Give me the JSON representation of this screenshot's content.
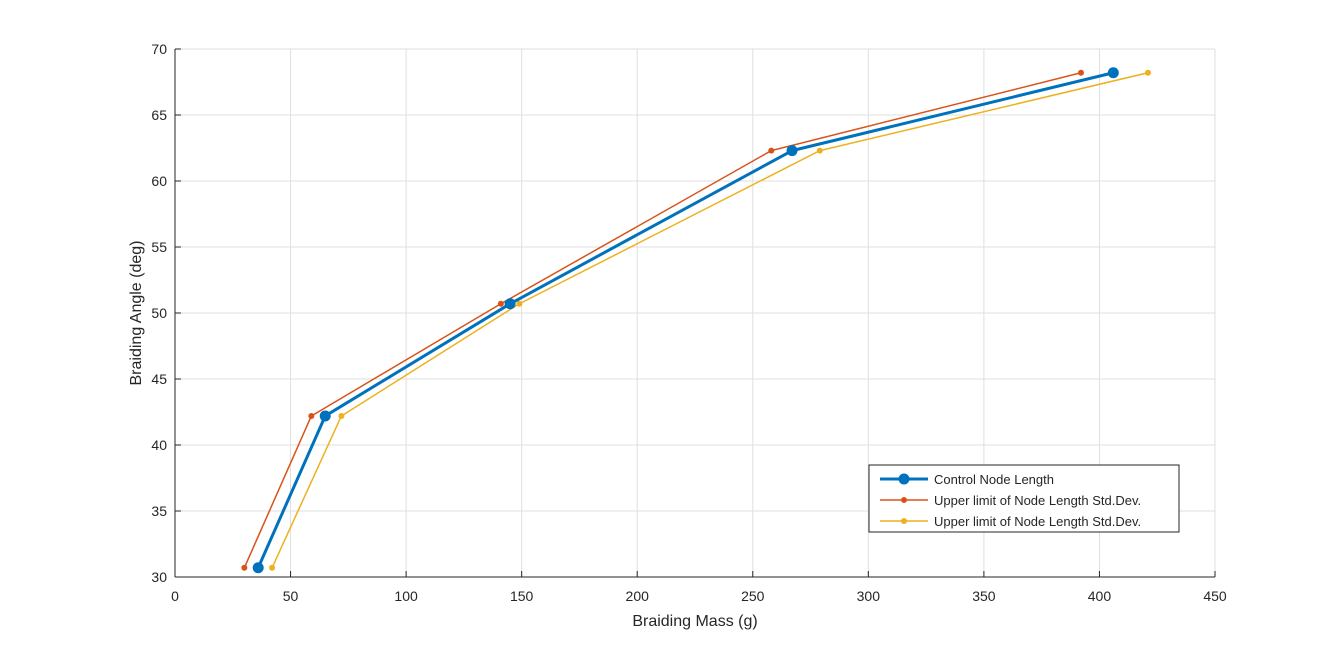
{
  "chart_data": {
    "type": "line",
    "xlabel": "Braiding Mass (g)",
    "ylabel": "Braiding Angle (deg)",
    "xlim": [
      0,
      450
    ],
    "ylim": [
      30,
      70
    ],
    "xticks": [
      0,
      50,
      100,
      150,
      200,
      250,
      300,
      350,
      400,
      450
    ],
    "yticks": [
      30,
      35,
      40,
      45,
      50,
      55,
      60,
      65,
      70
    ],
    "grid": true,
    "legend_position": "bottom-right",
    "series": [
      {
        "name": "Control Node Length",
        "color": "#0072BD",
        "marker": "circle-large",
        "x": [
          36,
          65,
          145,
          267,
          406
        ],
        "y": [
          30.7,
          42.2,
          50.7,
          62.3,
          68.2
        ]
      },
      {
        "name": "Upper limit of Node Length Std.Dev.",
        "color": "#D95319",
        "marker": "circle-small",
        "x": [
          30,
          59,
          141,
          258,
          392
        ],
        "y": [
          30.7,
          42.2,
          50.7,
          62.3,
          68.2
        ]
      },
      {
        "name": "Upper limit of Node Length Std.Dev.",
        "color": "#EDB120",
        "marker": "circle-small",
        "x": [
          42,
          72,
          149,
          279,
          421
        ],
        "y": [
          30.7,
          42.2,
          50.7,
          62.3,
          68.2
        ]
      }
    ]
  }
}
